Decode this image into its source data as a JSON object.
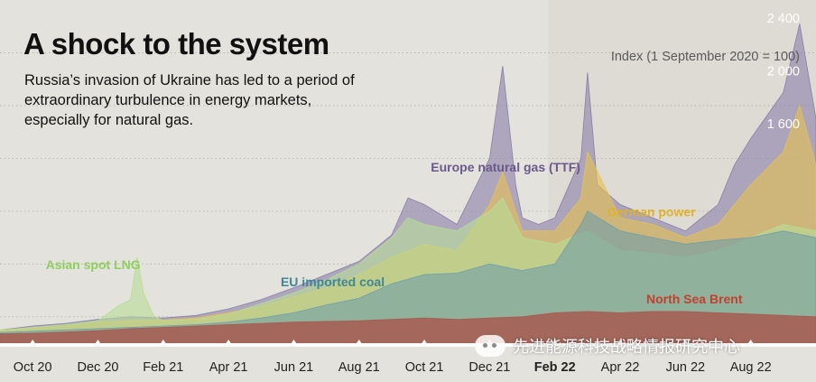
{
  "title": "A shock to the system",
  "subtitle": "Russia’s invasion of Ukraine has led to a period of extraordinary turbulence in energy markets, especially for natural gas.",
  "watermark": "先进能源科技战略情报研究中心",
  "chart_data": {
    "type": "area",
    "ylabel": "Index (1 September 2020 = 100)",
    "ylim": [
      0,
      2600
    ],
    "yticks": [
      {
        "value": 1600,
        "label": "1 600"
      },
      {
        "value": 2000,
        "label": "2 000"
      },
      {
        "value": 2400,
        "label": "2 400"
      }
    ],
    "gridlines": [
      200,
      600,
      1000,
      1400,
      1800,
      2200
    ],
    "xlim": [
      0,
      25
    ],
    "xticks": [
      {
        "pos": 1,
        "label": "Oct 20",
        "bold": false
      },
      {
        "pos": 3,
        "label": "Dec 20",
        "bold": false
      },
      {
        "pos": 5,
        "label": "Feb 21",
        "bold": false
      },
      {
        "pos": 7,
        "label": "Apr 21",
        "bold": false
      },
      {
        "pos": 9,
        "label": "Jun 21",
        "bold": false
      },
      {
        "pos": 11,
        "label": "Aug 21",
        "bold": false
      },
      {
        "pos": 13,
        "label": "Oct 21",
        "bold": false
      },
      {
        "pos": 15,
        "label": "Dec 21",
        "bold": false
      },
      {
        "pos": 17,
        "label": "Feb 22",
        "bold": true
      },
      {
        "pos": 19,
        "label": "Apr 22",
        "bold": false
      },
      {
        "pos": 21,
        "label": "Jun 22",
        "bold": false
      },
      {
        "pos": 23,
        "label": "Aug 22",
        "bold": false
      }
    ],
    "invasion_marker": 16.8,
    "series": [
      {
        "name": "Europe natural gas (TTF)",
        "color": "#8b7fa8",
        "points": [
          [
            0,
            100
          ],
          [
            1,
            130
          ],
          [
            2,
            150
          ],
          [
            3,
            180
          ],
          [
            4,
            200
          ],
          [
            5,
            190
          ],
          [
            6,
            210
          ],
          [
            7,
            260
          ],
          [
            8,
            330
          ],
          [
            9,
            420
          ],
          [
            10,
            520
          ],
          [
            11,
            620
          ],
          [
            12,
            820
          ],
          [
            12.5,
            1100
          ],
          [
            13,
            1050
          ],
          [
            14,
            900
          ],
          [
            15,
            1400
          ],
          [
            15.4,
            2100
          ],
          [
            15.8,
            1200
          ],
          [
            16,
            950
          ],
          [
            16.5,
            900
          ],
          [
            17,
            950
          ],
          [
            17.8,
            1400
          ],
          [
            18,
            2050
          ],
          [
            18.3,
            1200
          ],
          [
            19,
            1050
          ],
          [
            20,
            950
          ],
          [
            21,
            850
          ],
          [
            22,
            1050
          ],
          [
            22.5,
            1350
          ],
          [
            23,
            1550
          ],
          [
            24,
            1900
          ],
          [
            24.5,
            2420
          ],
          [
            25,
            1700
          ]
        ]
      },
      {
        "name": "German power",
        "color": "#e6c250",
        "points": [
          [
            0,
            100
          ],
          [
            1,
            110
          ],
          [
            2,
            130
          ],
          [
            3,
            160
          ],
          [
            4,
            170
          ],
          [
            5,
            175
          ],
          [
            6,
            190
          ],
          [
            7,
            230
          ],
          [
            8,
            280
          ],
          [
            9,
            350
          ],
          [
            10,
            420
          ],
          [
            11,
            520
          ],
          [
            12,
            650
          ],
          [
            13,
            750
          ],
          [
            14,
            700
          ],
          [
            15,
            1050
          ],
          [
            15.4,
            1300
          ],
          [
            16,
            850
          ],
          [
            17,
            850
          ],
          [
            17.8,
            1100
          ],
          [
            18,
            1450
          ],
          [
            19,
            950
          ],
          [
            20,
            900
          ],
          [
            21,
            800
          ],
          [
            22,
            900
          ],
          [
            23,
            1200
          ],
          [
            24,
            1450
          ],
          [
            24.5,
            1800
          ],
          [
            25,
            1350
          ]
        ]
      },
      {
        "name": "Asian spot LNG",
        "color": "#b7dd96",
        "points": [
          [
            0,
            100
          ],
          [
            1,
            120
          ],
          [
            2,
            140
          ],
          [
            3,
            170
          ],
          [
            3.6,
            280
          ],
          [
            4,
            330
          ],
          [
            4.2,
            650
          ],
          [
            4.4,
            380
          ],
          [
            4.7,
            210
          ],
          [
            5,
            170
          ],
          [
            6,
            180
          ],
          [
            7,
            220
          ],
          [
            8,
            300
          ],
          [
            9,
            380
          ],
          [
            10,
            480
          ],
          [
            11,
            600
          ],
          [
            12,
            800
          ],
          [
            12.5,
            950
          ],
          [
            13,
            900
          ],
          [
            14,
            850
          ],
          [
            15,
            1000
          ],
          [
            15.4,
            1100
          ],
          [
            16,
            800
          ],
          [
            17,
            750
          ],
          [
            18,
            850
          ],
          [
            19,
            700
          ],
          [
            20,
            680
          ],
          [
            21,
            650
          ],
          [
            22,
            700
          ],
          [
            23,
            800
          ],
          [
            24,
            900
          ],
          [
            25,
            850
          ]
        ]
      },
      {
        "name": "EU imported coal",
        "color": "#6f9fa8",
        "points": [
          [
            0,
            80
          ],
          [
            1,
            90
          ],
          [
            2,
            100
          ],
          [
            3,
            110
          ],
          [
            4,
            120
          ],
          [
            5,
            130
          ],
          [
            6,
            140
          ],
          [
            7,
            160
          ],
          [
            8,
            190
          ],
          [
            9,
            230
          ],
          [
            10,
            290
          ],
          [
            11,
            340
          ],
          [
            12,
            450
          ],
          [
            13,
            520
          ],
          [
            14,
            530
          ],
          [
            15,
            600
          ],
          [
            16,
            550
          ],
          [
            17,
            600
          ],
          [
            17.8,
            900
          ],
          [
            18,
            1000
          ],
          [
            19,
            850
          ],
          [
            20,
            800
          ],
          [
            21,
            750
          ],
          [
            22,
            780
          ],
          [
            23,
            800
          ],
          [
            24,
            850
          ],
          [
            25,
            800
          ]
        ]
      },
      {
        "name": "North Sea Brent",
        "color": "#a85a50",
        "points": [
          [
            0,
            70
          ],
          [
            1,
            75
          ],
          [
            2,
            85
          ],
          [
            3,
            95
          ],
          [
            4,
            110
          ],
          [
            5,
            120
          ],
          [
            6,
            130
          ],
          [
            7,
            140
          ],
          [
            8,
            150
          ],
          [
            9,
            160
          ],
          [
            10,
            165
          ],
          [
            11,
            170
          ],
          [
            12,
            180
          ],
          [
            13,
            190
          ],
          [
            14,
            180
          ],
          [
            15,
            190
          ],
          [
            16,
            200
          ],
          [
            17,
            230
          ],
          [
            18,
            240
          ],
          [
            19,
            230
          ],
          [
            20,
            240
          ],
          [
            21,
            240
          ],
          [
            22,
            230
          ],
          [
            23,
            220
          ],
          [
            24,
            210
          ],
          [
            25,
            200
          ]
        ]
      }
    ],
    "series_labels": [
      {
        "text": "Europe natural gas (TTF)",
        "color": "#6a5a8c",
        "x": 13.2,
        "y": 1300
      },
      {
        "text": "German power",
        "color": "#e0b12a",
        "x": 18.6,
        "y": 960
      },
      {
        "text": "Asian spot LNG",
        "color": "#8ecf5f",
        "x": 1.4,
        "y": 560
      },
      {
        "text": "EU imported coal",
        "color": "#3e8794",
        "x": 8.6,
        "y": 430
      },
      {
        "text": "North Sea Brent",
        "color": "#c2412f",
        "x": 19.8,
        "y": 300
      }
    ]
  }
}
